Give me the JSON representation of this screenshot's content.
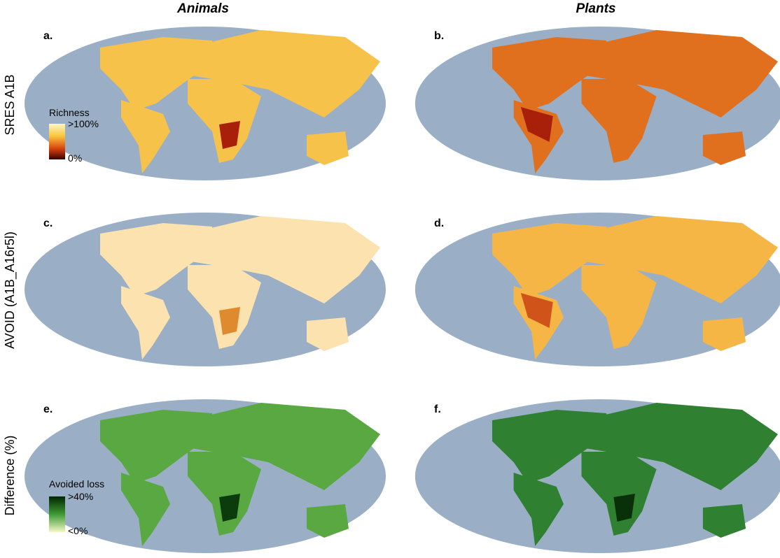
{
  "columns": [
    "Animals",
    "Plants"
  ],
  "rows": [
    "SRES A1B",
    "AVOID (A1B_A16r5l)",
    "Difference (%)"
  ],
  "panels": [
    "a.",
    "b.",
    "c.",
    "d.",
    "e.",
    "f."
  ],
  "legends": [
    {
      "title": "Richness",
      "max_label": ">100%",
      "min_label": "0%"
    },
    {
      "title": "Avoided loss",
      "max_label": ">40%",
      "min_label": "<0%"
    }
  ]
}
